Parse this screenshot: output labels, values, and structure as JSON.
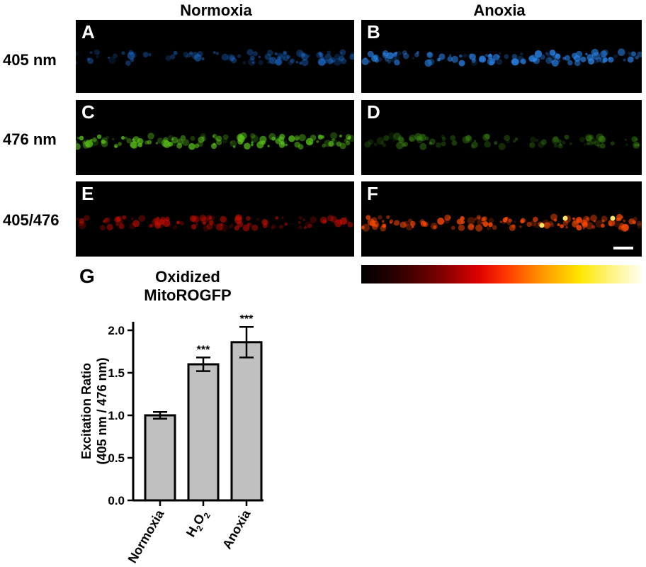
{
  "headers": {
    "left": "Normoxia",
    "right": "Anoxia"
  },
  "rows": [
    {
      "label": "405 nm",
      "panels": [
        {
          "letter": "A",
          "color": "#1f6fd6",
          "intensity": 0.55
        },
        {
          "letter": "B",
          "color": "#2a86ee",
          "intensity": 0.9
        }
      ]
    },
    {
      "label": "476 nm",
      "panels": [
        {
          "letter": "C",
          "color": "#59c21a",
          "intensity": 0.9
        },
        {
          "letter": "D",
          "color": "#3f8f14",
          "intensity": 0.45
        }
      ]
    },
    {
      "label": "405/476",
      "panels": [
        {
          "letter": "E",
          "color": "#e01000",
          "intensity": 0.6
        },
        {
          "letter": "F",
          "color": "#ff4a00",
          "intensity": 1.0
        }
      ]
    }
  ],
  "colorbar": {
    "colors": [
      "#000000",
      "#e00000",
      "#ffe600",
      "#fffef2"
    ]
  },
  "panel_g": {
    "letter": "G",
    "title_line1": "Oxidized",
    "title_line2": "MitoROGFP"
  },
  "chart_data": {
    "type": "bar",
    "categories": [
      "Normoxia",
      "H2O2",
      "Anoxia"
    ],
    "values": [
      1.0,
      1.6,
      1.86
    ],
    "errors": [
      0.04,
      0.08,
      0.18
    ],
    "significance": [
      "",
      "***",
      "***"
    ],
    "ylabel_line1": "Excitation Ratio",
    "ylabel_line2": "(405 nm / 476 nm)",
    "ylim": [
      0,
      2.1
    ],
    "yticks": [
      "0.0",
      "0.5",
      "1.0",
      "1.5",
      "2.0"
    ],
    "bar_color": "#c0c0c0"
  }
}
